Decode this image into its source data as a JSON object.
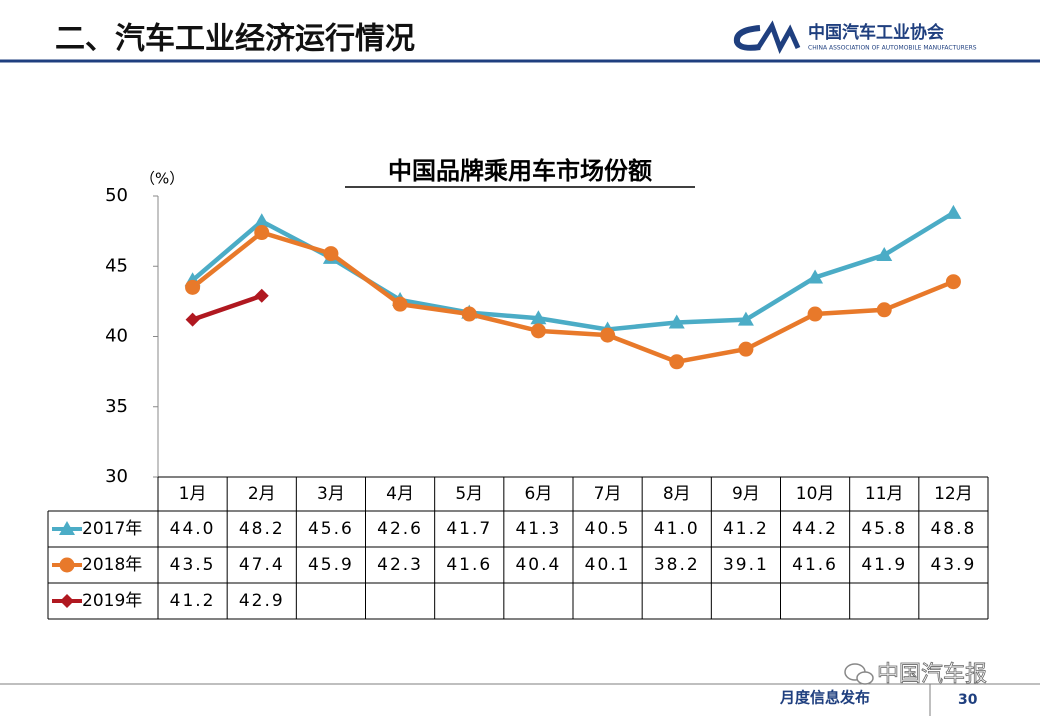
{
  "header": {
    "title": "二、汽车工业经济运行情况",
    "logo_cn": "中国汽车工业协会",
    "logo_en": "CHINA ASSOCIATION OF AUTOMOBILE MANUFACTURERS"
  },
  "footer": {
    "label": "月度信息发布",
    "page": "30",
    "watermark": "中国汽车报"
  },
  "chart_data": {
    "type": "line",
    "title": "中国品牌乘用车市场份额",
    "y_label": "（%）",
    "categories": [
      "1月",
      "2月",
      "3月",
      "4月",
      "5月",
      "6月",
      "7月",
      "8月",
      "9月",
      "10月",
      "11月",
      "12月"
    ],
    "ylim": [
      30,
      50
    ],
    "yticks": [
      30,
      35,
      40,
      45,
      50
    ],
    "grid": false,
    "series": [
      {
        "name": "2017年",
        "color": "#4bacc6",
        "marker": "triangle",
        "values": [
          44.0,
          48.2,
          45.6,
          42.6,
          41.7,
          41.3,
          40.5,
          41.0,
          41.2,
          44.2,
          45.8,
          48.8
        ],
        "value_labels": [
          "44.0",
          "48.2",
          "45.6",
          "42.6",
          "41.7",
          "41.3",
          "40.5",
          "41.0",
          "41.2",
          "44.2",
          "45.8",
          "48.8"
        ]
      },
      {
        "name": "2018年",
        "color": "#e8792a",
        "marker": "circle",
        "values": [
          43.5,
          47.4,
          45.9,
          42.3,
          41.6,
          40.4,
          40.1,
          38.2,
          39.1,
          41.6,
          41.9,
          43.9
        ],
        "value_labels": [
          "43.5",
          "47.4",
          "45.9",
          "42.3",
          "41.6",
          "40.4",
          "40.1",
          "38.2",
          "39.1",
          "41.6",
          "41.9",
          "43.9"
        ]
      },
      {
        "name": "2019年",
        "color": "#b01820",
        "marker": "diamond",
        "values": [
          41.2,
          42.9,
          null,
          null,
          null,
          null,
          null,
          null,
          null,
          null,
          null,
          null
        ],
        "value_labels": [
          "41.2",
          "42.9",
          null,
          null,
          null,
          null,
          null,
          null,
          null,
          null,
          null,
          null
        ]
      }
    ]
  }
}
